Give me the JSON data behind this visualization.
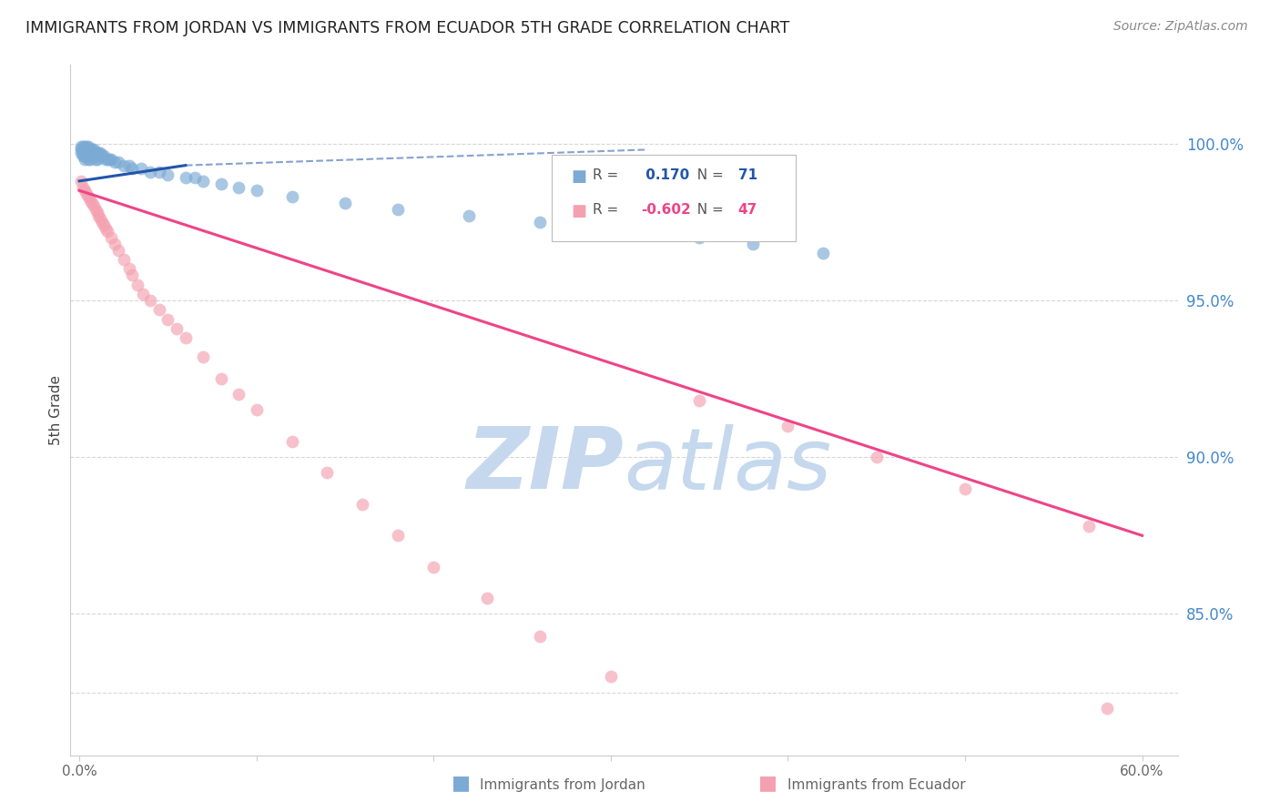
{
  "title": "IMMIGRANTS FROM JORDAN VS IMMIGRANTS FROM ECUADOR 5TH GRADE CORRELATION CHART",
  "source": "Source: ZipAtlas.com",
  "ylabel": "5th Grade",
  "xlabel_ticks": [
    "0.0%",
    "",
    "",
    "",
    "",
    "",
    "60.0%"
  ],
  "xlabel_vals": [
    0.0,
    0.1,
    0.2,
    0.3,
    0.4,
    0.5,
    0.6
  ],
  "ylabel_ticks_right": [
    "100.0%",
    "95.0%",
    "90.0%",
    "85.0%"
  ],
  "ylabel_vals_right": [
    1.0,
    0.95,
    0.9,
    0.85
  ],
  "xlim": [
    -0.005,
    0.62
  ],
  "ylim": [
    0.805,
    1.025
  ],
  "jordan_R": 0.17,
  "jordan_N": 71,
  "ecuador_R": -0.602,
  "ecuador_N": 47,
  "jordan_color": "#7BAAD4",
  "ecuador_color": "#F4A0B0",
  "jordan_line_color": "#2255AA",
  "ecuador_line_color": "#EE4488",
  "grid_color": "#CCCCCC",
  "title_color": "#222222",
  "right_axis_color": "#4488CC",
  "watermark_color": "#C5D8EE",
  "background_color": "#FFFFFF",
  "jordan_scatter_x": [
    0.001,
    0.001,
    0.001,
    0.002,
    0.002,
    0.002,
    0.002,
    0.003,
    0.003,
    0.003,
    0.003,
    0.003,
    0.004,
    0.004,
    0.004,
    0.004,
    0.005,
    0.005,
    0.005,
    0.005,
    0.005,
    0.006,
    0.006,
    0.006,
    0.006,
    0.007,
    0.007,
    0.007,
    0.008,
    0.008,
    0.008,
    0.009,
    0.009,
    0.009,
    0.01,
    0.01,
    0.01,
    0.011,
    0.011,
    0.012,
    0.012,
    0.013,
    0.014,
    0.015,
    0.016,
    0.017,
    0.018,
    0.02,
    0.022,
    0.025,
    0.028,
    0.03,
    0.035,
    0.04,
    0.045,
    0.05,
    0.06,
    0.065,
    0.07,
    0.08,
    0.09,
    0.1,
    0.12,
    0.15,
    0.18,
    0.22,
    0.26,
    0.3,
    0.35,
    0.38,
    0.42
  ],
  "jordan_scatter_y": [
    0.999,
    0.998,
    0.997,
    0.999,
    0.998,
    0.997,
    0.996,
    0.999,
    0.998,
    0.997,
    0.996,
    0.995,
    0.999,
    0.998,
    0.997,
    0.996,
    0.999,
    0.998,
    0.997,
    0.996,
    0.995,
    0.998,
    0.997,
    0.996,
    0.995,
    0.998,
    0.997,
    0.996,
    0.998,
    0.997,
    0.996,
    0.997,
    0.996,
    0.995,
    0.997,
    0.996,
    0.995,
    0.997,
    0.996,
    0.997,
    0.996,
    0.996,
    0.996,
    0.995,
    0.995,
    0.995,
    0.995,
    0.994,
    0.994,
    0.993,
    0.993,
    0.992,
    0.992,
    0.991,
    0.991,
    0.99,
    0.989,
    0.989,
    0.988,
    0.987,
    0.986,
    0.985,
    0.983,
    0.981,
    0.979,
    0.977,
    0.975,
    0.972,
    0.97,
    0.968,
    0.965
  ],
  "ecuador_scatter_x": [
    0.001,
    0.002,
    0.003,
    0.004,
    0.005,
    0.006,
    0.007,
    0.008,
    0.009,
    0.01,
    0.011,
    0.012,
    0.013,
    0.014,
    0.015,
    0.016,
    0.018,
    0.02,
    0.022,
    0.025,
    0.028,
    0.03,
    0.033,
    0.036,
    0.04,
    0.045,
    0.05,
    0.055,
    0.06,
    0.07,
    0.08,
    0.09,
    0.1,
    0.12,
    0.14,
    0.16,
    0.18,
    0.2,
    0.23,
    0.26,
    0.3,
    0.35,
    0.4,
    0.45,
    0.5,
    0.57,
    0.58
  ],
  "ecuador_scatter_y": [
    0.988,
    0.986,
    0.985,
    0.984,
    0.983,
    0.982,
    0.981,
    0.98,
    0.979,
    0.978,
    0.977,
    0.976,
    0.975,
    0.974,
    0.973,
    0.972,
    0.97,
    0.968,
    0.966,
    0.963,
    0.96,
    0.958,
    0.955,
    0.952,
    0.95,
    0.947,
    0.944,
    0.941,
    0.938,
    0.932,
    0.925,
    0.92,
    0.915,
    0.905,
    0.895,
    0.885,
    0.875,
    0.865,
    0.855,
    0.843,
    0.83,
    0.918,
    0.91,
    0.9,
    0.89,
    0.878,
    0.82
  ],
  "jordan_line_x": [
    0.0,
    0.06
  ],
  "jordan_line_solid_end": 0.06,
  "jordan_line_dashed_end": 0.32,
  "ecuador_line_x_start": 0.0,
  "ecuador_line_x_end": 0.6
}
